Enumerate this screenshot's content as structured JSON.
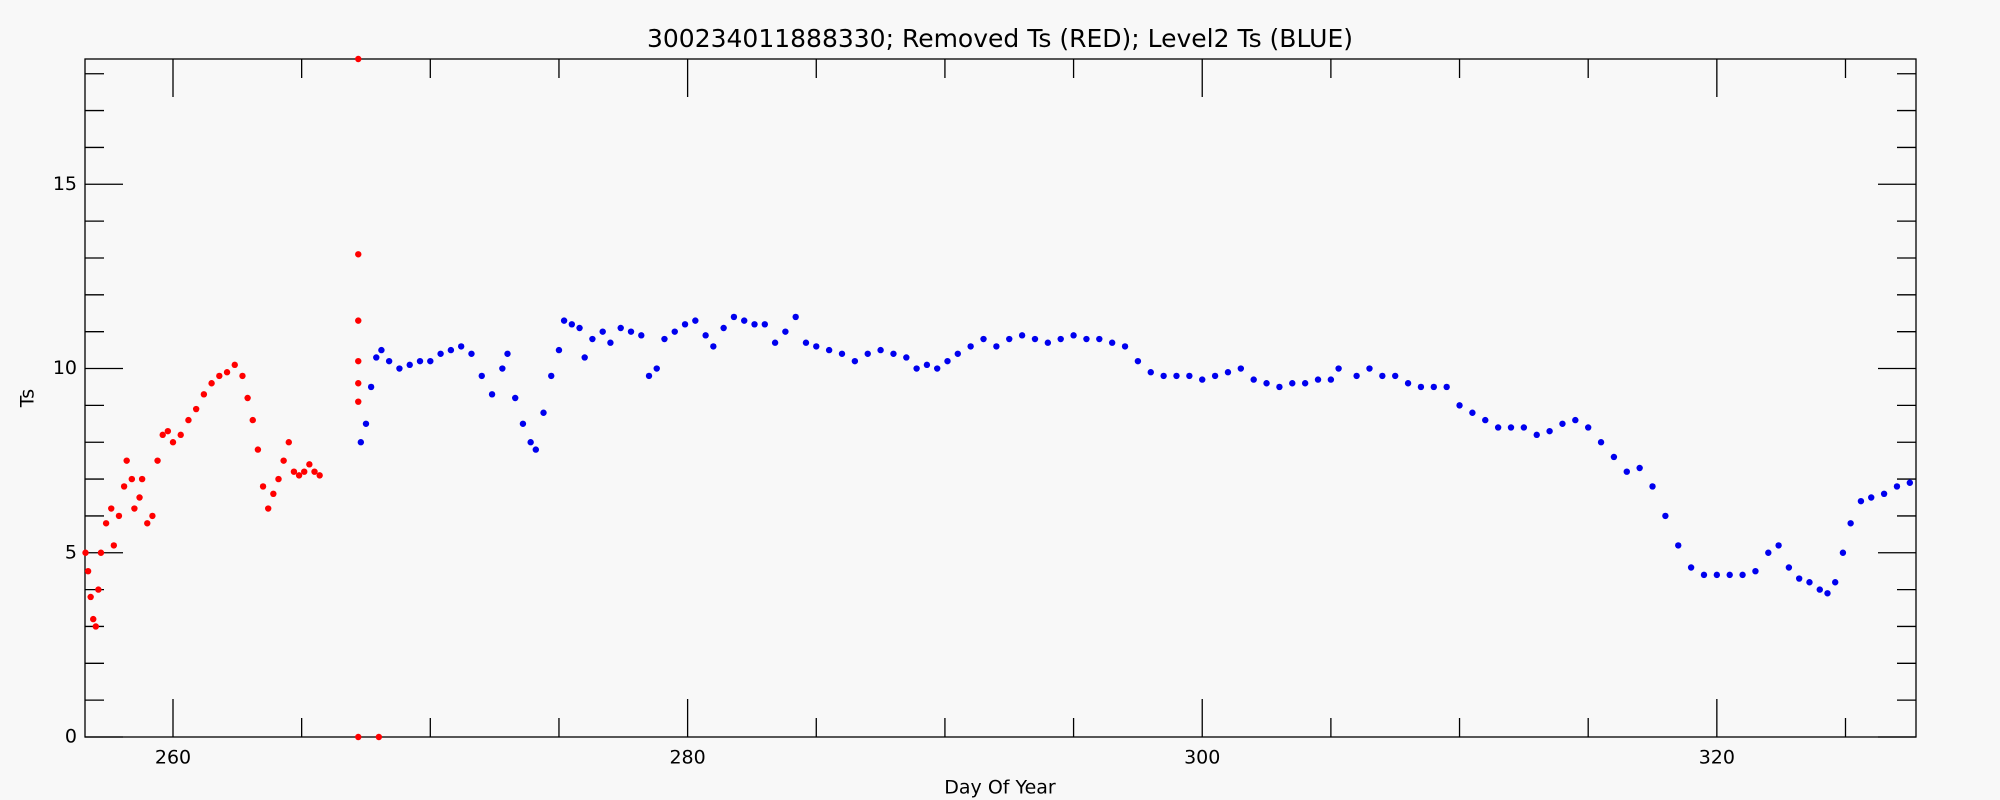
{
  "chart_data": {
    "type": "scatter",
    "title": "300234011888330; Removed Ts (RED); Level2 Ts (BLUE)",
    "x_label": "Day Of Year",
    "y_label": "Ts",
    "xlim": [
      256.58,
      327.74
    ],
    "ylim": [
      0,
      18.4
    ],
    "xticks": [
      260,
      280,
      300,
      320
    ],
    "yticks": [
      0,
      5,
      10,
      15
    ],
    "xminorticks": [
      265,
      270,
      275,
      285,
      290,
      295,
      305,
      310,
      315,
      325
    ],
    "yminorticks": [
      1,
      2,
      3,
      4,
      6,
      7,
      8,
      9,
      11,
      12,
      13,
      14,
      16,
      17,
      18
    ],
    "series": [
      {
        "color": "#ff0000",
        "x": [
          256.6,
          256.7,
          256.8,
          256.9,
          257.0,
          257.1,
          257.2,
          257.4,
          257.6,
          257.7,
          257.9,
          258.1,
          258.2,
          258.4,
          258.5,
          258.7,
          258.8,
          259.0,
          259.2,
          259.4,
          259.6,
          259.8,
          260.0,
          260.3,
          260.6,
          260.9,
          261.2,
          261.5,
          261.8,
          262.1,
          262.4,
          262.7,
          262.9,
          263.1,
          263.3,
          263.5,
          263.7,
          263.9,
          264.1,
          264.3,
          264.5,
          264.7,
          264.9,
          265.1,
          265.3,
          265.5,
          265.7,
          267.2,
          267.2,
          267.2,
          267.2,
          267.2,
          267.2,
          267.2,
          268.0
        ],
        "values": [
          5.0,
          4.5,
          3.8,
          3.2,
          3.0,
          4.0,
          5.0,
          5.8,
          6.2,
          5.2,
          6.0,
          6.8,
          7.5,
          7.0,
          6.2,
          6.5,
          7.0,
          5.8,
          6.0,
          7.5,
          8.2,
          8.3,
          8.0,
          8.2,
          8.6,
          8.9,
          9.3,
          9.6,
          9.8,
          9.9,
          10.1,
          9.8,
          9.2,
          8.6,
          7.8,
          6.8,
          6.2,
          6.6,
          7.0,
          7.5,
          8.0,
          7.2,
          7.1,
          7.2,
          7.4,
          7.2,
          7.1,
          13.1,
          11.3,
          10.2,
          9.6,
          9.1,
          18.4,
          0.0,
          0.0
        ]
      },
      {
        "color": "#0000ee",
        "x": [
          267.3,
          267.5,
          267.7,
          267.9,
          268.1,
          268.4,
          268.8,
          269.2,
          269.6,
          270.0,
          270.4,
          270.8,
          271.2,
          271.6,
          272.0,
          272.4,
          272.8,
          273.0,
          273.3,
          273.6,
          273.9,
          274.1,
          274.4,
          274.7,
          275.0,
          275.2,
          275.5,
          275.8,
          276.0,
          276.3,
          276.7,
          277.0,
          277.4,
          277.8,
          278.2,
          278.5,
          278.8,
          279.1,
          279.5,
          279.9,
          280.3,
          280.7,
          281.0,
          281.4,
          281.8,
          282.2,
          282.6,
          283.0,
          283.4,
          283.8,
          284.2,
          284.6,
          285.0,
          285.5,
          286.0,
          286.5,
          287.0,
          287.5,
          288.0,
          288.5,
          288.9,
          289.3,
          289.7,
          290.1,
          290.5,
          291.0,
          291.5,
          292.0,
          292.5,
          293.0,
          293.5,
          294.0,
          294.5,
          295.0,
          295.5,
          296.0,
          296.5,
          297.0,
          297.5,
          298.0,
          298.5,
          299.0,
          299.5,
          300.0,
          300.5,
          301.0,
          301.5,
          302.0,
          302.5,
          303.0,
          303.5,
          304.0,
          304.5,
          305.0,
          305.3,
          306.0,
          306.5,
          307.0,
          307.5,
          308.0,
          308.5,
          309.0,
          309.5,
          310.0,
          310.5,
          311.0,
          311.5,
          312.0,
          312.5,
          313.0,
          313.5,
          314.0,
          314.5,
          315.0,
          315.5,
          316.0,
          316.5,
          317.0,
          317.5,
          318.0,
          318.5,
          319.0,
          319.5,
          320.0,
          320.5,
          321.0,
          321.5,
          322.0,
          322.4,
          322.8,
          323.2,
          323.6,
          324.0,
          324.3,
          324.6,
          324.9,
          325.2,
          325.6,
          326.0,
          326.5,
          327.0,
          327.5
        ],
        "values": [
          8.0,
          8.5,
          9.5,
          10.3,
          10.5,
          10.2,
          10.0,
          10.1,
          10.2,
          10.2,
          10.4,
          10.5,
          10.6,
          10.4,
          9.8,
          9.3,
          10.0,
          10.4,
          9.2,
          8.5,
          8.0,
          7.8,
          8.8,
          9.8,
          10.5,
          11.3,
          11.2,
          11.1,
          10.3,
          10.8,
          11.0,
          10.7,
          11.1,
          11.0,
          10.9,
          9.8,
          10.0,
          10.8,
          11.0,
          11.2,
          11.3,
          10.9,
          10.6,
          11.1,
          11.4,
          11.3,
          11.2,
          11.2,
          10.7,
          11.0,
          11.4,
          10.7,
          10.6,
          10.5,
          10.4,
          10.2,
          10.4,
          10.5,
          10.4,
          10.3,
          10.0,
          10.1,
          10.0,
          10.2,
          10.4,
          10.6,
          10.8,
          10.6,
          10.8,
          10.9,
          10.8,
          10.7,
          10.8,
          10.9,
          10.8,
          10.8,
          10.7,
          10.6,
          10.2,
          9.9,
          9.8,
          9.8,
          9.8,
          9.7,
          9.8,
          9.9,
          10.0,
          9.7,
          9.6,
          9.5,
          9.6,
          9.6,
          9.7,
          9.7,
          10.0,
          9.8,
          10.0,
          9.8,
          9.8,
          9.6,
          9.5,
          9.5,
          9.5,
          9.0,
          8.8,
          8.6,
          8.4,
          8.4,
          8.4,
          8.2,
          8.3,
          8.5,
          8.6,
          8.4,
          8.0,
          7.6,
          7.2,
          7.3,
          6.8,
          6.0,
          5.2,
          4.6,
          4.4,
          4.4,
          4.4,
          4.4,
          4.5,
          5.0,
          5.2,
          4.6,
          4.3,
          4.2,
          4.0,
          3.9,
          4.2,
          5.0,
          5.8,
          6.4,
          6.5,
          6.6,
          6.8,
          6.9
        ]
      }
    ]
  }
}
